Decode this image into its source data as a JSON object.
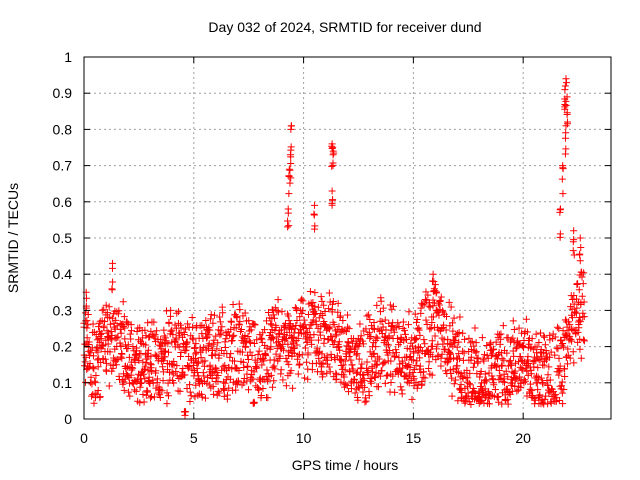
{
  "chart_data": {
    "type": "scatter",
    "title": "Day 032 of 2024, SRMTID for receiver dund",
    "xlabel": "GPS time / hours",
    "ylabel": "SRMTID / TECUs",
    "xlim": [
      0,
      24
    ],
    "ylim": [
      0,
      1
    ],
    "xticks": [
      0,
      5,
      10,
      15,
      20
    ],
    "yticks": [
      0,
      0.1,
      0.2,
      0.3,
      0.4,
      0.5,
      0.6,
      0.7,
      0.8,
      0.9,
      1
    ],
    "ytick_labels": [
      "0",
      "0.1",
      "0.2",
      "0.3",
      "0.4",
      "0.5",
      "0.6",
      "0.7",
      "0.8",
      "0.9",
      "1"
    ],
    "grid": true,
    "marker": "+",
    "series_color": "#ff0000",
    "background_level": {
      "hours": [
        0,
        0.5,
        1,
        1.5,
        2,
        2.5,
        3,
        3.5,
        4,
        4.5,
        5,
        5.5,
        6,
        6.5,
        7,
        7.5,
        8,
        8.5,
        9,
        9.5,
        10,
        10.5,
        11,
        11.5,
        12,
        12.5,
        13,
        13.5,
        14,
        14.5,
        15,
        15.5,
        16,
        16.5,
        17,
        17.5,
        18,
        18.5,
        19,
        19.5,
        20,
        20.5,
        21,
        21.5,
        22,
        22.5,
        22.8
      ],
      "values": [
        0.22,
        0.15,
        0.22,
        0.21,
        0.18,
        0.15,
        0.15,
        0.16,
        0.17,
        0.18,
        0.16,
        0.17,
        0.18,
        0.17,
        0.19,
        0.17,
        0.15,
        0.2,
        0.22,
        0.21,
        0.22,
        0.23,
        0.24,
        0.2,
        0.15,
        0.14,
        0.17,
        0.2,
        0.2,
        0.18,
        0.18,
        0.22,
        0.26,
        0.22,
        0.15,
        0.13,
        0.13,
        0.12,
        0.13,
        0.14,
        0.14,
        0.13,
        0.12,
        0.12,
        0.2,
        0.3,
        0.3
      ]
    },
    "notable_points": [
      {
        "x": 0.1,
        "y": 0.35
      },
      {
        "x": 1.3,
        "y": 0.43
      },
      {
        "x": 4.6,
        "y": 0.01
      },
      {
        "x": 9.3,
        "y": 0.58
      },
      {
        "x": 9.45,
        "y": 0.81
      },
      {
        "x": 9.4,
        "y": 0.73
      },
      {
        "x": 9.35,
        "y": 0.69
      },
      {
        "x": 10.5,
        "y": 0.59
      },
      {
        "x": 11.3,
        "y": 0.76
      },
      {
        "x": 11.35,
        "y": 0.74
      },
      {
        "x": 11.3,
        "y": 0.63
      },
      {
        "x": 15.9,
        "y": 0.4
      },
      {
        "x": 21.95,
        "y": 0.94
      },
      {
        "x": 21.9,
        "y": 0.91
      },
      {
        "x": 22.0,
        "y": 0.89
      },
      {
        "x": 21.95,
        "y": 0.81
      },
      {
        "x": 21.8,
        "y": 0.7
      },
      {
        "x": 21.7,
        "y": 0.58
      },
      {
        "x": 22.3,
        "y": 0.52
      },
      {
        "x": 22.6,
        "y": 0.5
      }
    ]
  }
}
